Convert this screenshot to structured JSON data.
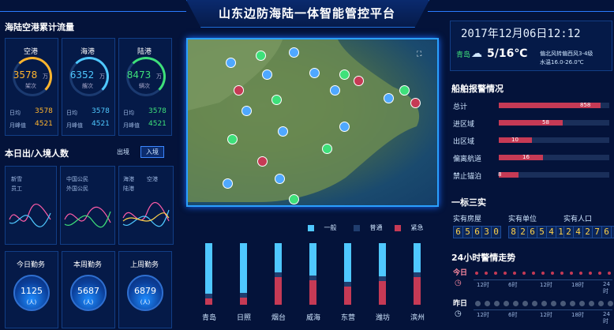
{
  "header": {
    "title": "山东边防海陆一体智能管控平台"
  },
  "clock": {
    "datetime": "2017年12月06日12:12",
    "city": "青岛",
    "temp": "5/16℃",
    "wind": "偏北风转偏西风3-4级",
    "water": "水温16.0-26.0℃"
  },
  "flow": {
    "title": "海陆空港累计流量",
    "cards": [
      {
        "name": "空港",
        "value": "3578",
        "unit": "万",
        "sub": "架次",
        "day_label": "日均",
        "day": "3578",
        "month_label": "月峰值",
        "month": "4521",
        "color": "#ffb52e"
      },
      {
        "name": "海港",
        "value": "6352",
        "unit": "万",
        "sub": "艘次",
        "day_label": "日均",
        "day": "3578",
        "month_label": "月峰值",
        "month": "4521",
        "color": "#4fc8ff"
      },
      {
        "name": "陆港",
        "value": "8473",
        "unit": "万",
        "sub": "辆次",
        "day_label": "日均",
        "day": "3578",
        "month_label": "月峰值",
        "month": "4521",
        "color": "#3ee07a"
      }
    ]
  },
  "daily": {
    "title": "本日出/入境人数",
    "tab_out": "出境",
    "tab_in": "入境",
    "legend1": [
      "新雪",
      "员工"
    ],
    "legend2": [
      "中国公民",
      "外国公民"
    ],
    "legend3": [
      "海港",
      "空港",
      "陆港"
    ]
  },
  "duty": {
    "items": [
      {
        "label": "今日勤务",
        "value": "1125",
        "unit": "(人)"
      },
      {
        "label": "本周勤务",
        "value": "5687",
        "unit": "(人)"
      },
      {
        "label": "上周勤务",
        "value": "6879",
        "unit": "(人)"
      }
    ]
  },
  "ships": {
    "title": "船舶报警情况",
    "rows": [
      {
        "label": "总计",
        "value": "858",
        "frac": 0.92
      },
      {
        "label": "进区域",
        "value": "58",
        "frac": 0.58
      },
      {
        "label": "出区域",
        "value": "10",
        "frac": 0.3
      },
      {
        "label": "偏离航道",
        "value": "16",
        "frac": 0.4
      },
      {
        "label": "禁止锚泊",
        "value": "8",
        "frac": 0.18
      }
    ]
  },
  "biao": {
    "title": "一标三实",
    "cols": [
      {
        "label": "实有房屋",
        "digits": "65630"
      },
      {
        "label": "实有单位",
        "digits": "826541"
      },
      {
        "label": "实有人口",
        "digits": "242763"
      }
    ]
  },
  "trend": {
    "title": "24小时警情走势",
    "today": "今日",
    "yesterday": "昨日",
    "ticks": [
      "12时",
      "6时",
      "12时",
      "18时",
      "24时"
    ]
  },
  "chart_data": {
    "type": "bar",
    "categories": [
      "青岛",
      "日照",
      "烟台",
      "威海",
      "东营",
      "潍坊",
      "滨州"
    ],
    "series": [
      {
        "name": "一般",
        "values": [
          0.9,
          0.88,
          0.55,
          0.6,
          0.7,
          0.62,
          0.55
        ]
      },
      {
        "name": "普通",
        "values": [
          0.0,
          0.0,
          0.0,
          0.0,
          0.0,
          0.0,
          0.0
        ]
      },
      {
        "name": "紧急",
        "values": [
          0.1,
          0.12,
          0.45,
          0.4,
          0.3,
          0.38,
          0.45
        ]
      }
    ],
    "colors": [
      "#4fc8ff",
      "#203d6e",
      "#c63a55"
    ]
  }
}
